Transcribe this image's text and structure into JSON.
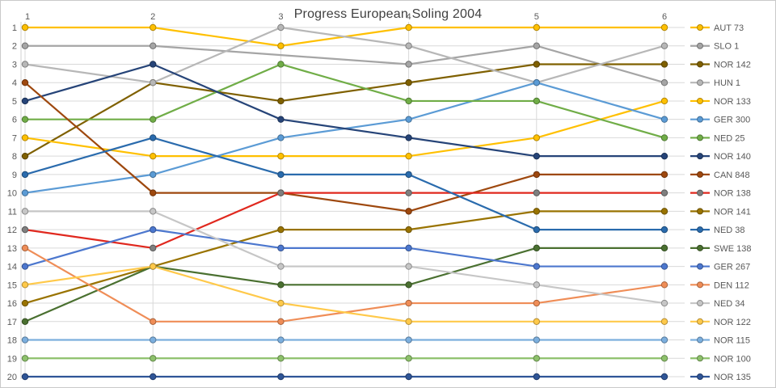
{
  "chart_data": {
    "type": "line",
    "title": "Progress European Soling 2004",
    "title_color": "#404040",
    "text_color": "#595959",
    "gridline_color": "#D9D9D9",
    "axis_line_color": "#D0D0D0",
    "grid": true,
    "legend_position": "right",
    "x_axis": {
      "position": "top",
      "tick_labels": [
        "1",
        "2",
        "3",
        "4",
        "5",
        "6"
      ]
    },
    "y_axis": {
      "tick_labels": [
        "1",
        "2",
        "3",
        "4",
        "5",
        "6",
        "7",
        "8",
        "9",
        "10",
        "11",
        "12",
        "13",
        "14",
        "15",
        "16",
        "17",
        "18",
        "19",
        "20"
      ],
      "range": [
        1,
        20
      ],
      "orientation": "position 1 at top (ranking)"
    },
    "x": [
      1,
      2,
      3,
      4,
      5,
      6
    ],
    "series": [
      {
        "name": "AUT 73",
        "color": "#FFC000",
        "values": [
          1,
          1,
          2,
          1,
          1,
          1
        ]
      },
      {
        "name": "SLO 1",
        "color": "#A5A5A5",
        "values": [
          2,
          2,
          null,
          3,
          2,
          4
        ]
      },
      {
        "name": "NOR 142",
        "color": "#7F6000",
        "values": [
          8,
          4,
          5,
          4,
          3,
          3
        ]
      },
      {
        "name": "HUN 1",
        "color": "#B7B7B7",
        "values": [
          3,
          4,
          1,
          2,
          4,
          2
        ]
      },
      {
        "name": "NOR 133",
        "color": "#FFC000",
        "values": [
          7,
          8,
          8,
          8,
          7,
          5
        ]
      },
      {
        "name": "GER 300",
        "color": "#5B9BD5",
        "values": [
          10,
          9,
          7,
          6,
          4,
          6
        ]
      },
      {
        "name": "NED 25",
        "color": "#70AD47",
        "values": [
          6,
          6,
          3,
          5,
          5,
          7
        ]
      },
      {
        "name": "NOR 140",
        "color": "#264478",
        "values": [
          5,
          3,
          6,
          7,
          8,
          8
        ]
      },
      {
        "name": "CAN 848",
        "color": "#9E480E",
        "values": [
          4,
          10,
          10,
          11,
          9,
          9
        ]
      },
      {
        "name": "NOR 138",
        "color": "#E0281E",
        "marker_color": "#7F7F7F",
        "values": [
          12,
          13,
          10,
          10,
          10,
          10
        ]
      },
      {
        "name": "NOR 141",
        "color": "#997300",
        "values": [
          16,
          14,
          12,
          12,
          11,
          11
        ]
      },
      {
        "name": "NED 38",
        "color": "#2A6BAD",
        "values": [
          9,
          7,
          9,
          9,
          12,
          12
        ]
      },
      {
        "name": "SWE 138",
        "color": "#4A7030",
        "values": [
          17,
          14,
          15,
          15,
          13,
          13
        ]
      },
      {
        "name": "GER 267",
        "color": "#4C77CE",
        "values": [
          14,
          12,
          13,
          13,
          14,
          14
        ]
      },
      {
        "name": "DEN 112",
        "color": "#EF8D57",
        "values": [
          13,
          17,
          17,
          16,
          16,
          15
        ]
      },
      {
        "name": "NED 34",
        "color": "#C6C6C6",
        "values": [
          11,
          11,
          14,
          14,
          15,
          16
        ]
      },
      {
        "name": "NOR 122",
        "color": "#FFC94A",
        "values": [
          15,
          14,
          16,
          17,
          17,
          17
        ]
      },
      {
        "name": "NOR 115",
        "color": "#7CAFDE",
        "values": [
          18,
          18,
          18,
          18,
          18,
          18
        ]
      },
      {
        "name": "NOR 100",
        "color": "#8DC16B",
        "values": [
          19,
          19,
          19,
          19,
          19,
          19
        ]
      },
      {
        "name": "NOR 135",
        "color": "#2F5597",
        "values": [
          20,
          20,
          20,
          20,
          20,
          20
        ]
      }
    ]
  }
}
